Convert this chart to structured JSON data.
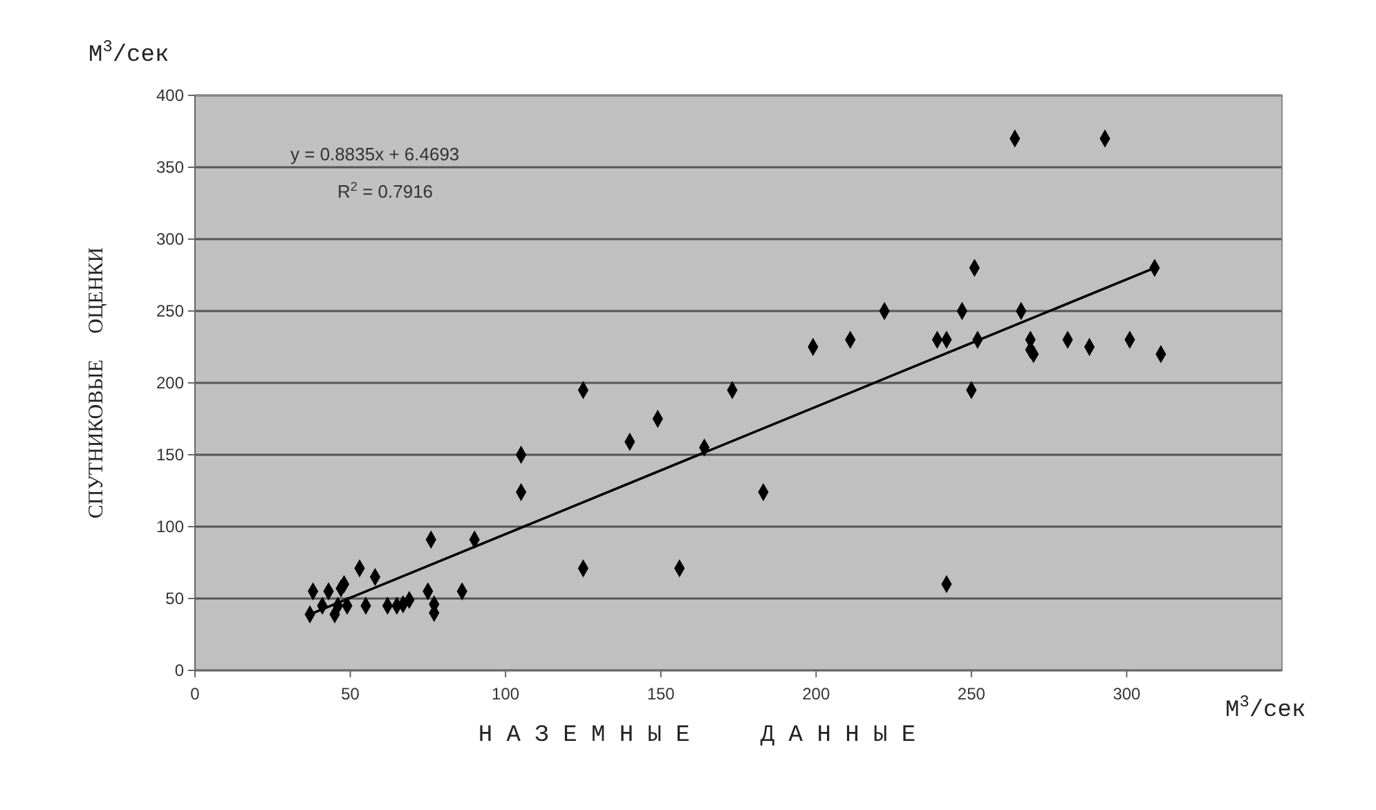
{
  "chart_data": {
    "type": "scatter",
    "xlabel": "Н А З Е М Н Ы Е     Д А Н Н Ы Е",
    "ylabel": "СПУТНИКОВЫЕ     ОЦЕНКИ",
    "xlim": [
      0,
      350
    ],
    "xticks": [
      0,
      50,
      100,
      150,
      200,
      250,
      300
    ],
    "ylim": [
      0,
      400
    ],
    "yticks": [
      0,
      50,
      100,
      150,
      200,
      250,
      300,
      350,
      400
    ],
    "grid": "y",
    "annotations": [
      "y = 0.8835x + 6.4693",
      "R$^{2}$ = 0.7916",
      "М$^{3}$/сек",
      "М$^{3}$/сек"
    ],
    "series": [
      {
        "color": "#000000",
        "marker": "diamond",
        "x": [
          37,
          38,
          41,
          43,
          45,
          46,
          48,
          47,
          49,
          53,
          55,
          58,
          62,
          65,
          67,
          69,
          76,
          75,
          77,
          77,
          86,
          90,
          105,
          105,
          125,
          125,
          140,
          149,
          156,
          164,
          173,
          183,
          199,
          211,
          222,
          239,
          242,
          242,
          247,
          250,
          251,
          252,
          264,
          266,
          269,
          269,
          270,
          281,
          288,
          293,
          301,
          309,
          311
        ],
        "values": [
          39,
          55,
          45,
          55,
          39,
          45,
          60,
          57,
          45,
          71,
          45,
          65,
          45,
          45,
          46,
          49,
          91,
          55,
          40,
          46,
          55,
          91,
          124,
          150,
          195,
          71,
          159,
          175,
          71,
          155,
          195,
          124,
          225,
          230,
          250,
          230,
          230,
          60,
          250,
          195,
          280,
          230,
          370,
          250,
          230,
          223,
          220,
          230,
          225,
          370,
          230,
          280,
          220
        ]
      },
      {
        "type": "line",
        "color": "#000000",
        "x": [
          37,
          309
        ],
        "values": [
          39,
          280
        ]
      }
    ]
  }
}
